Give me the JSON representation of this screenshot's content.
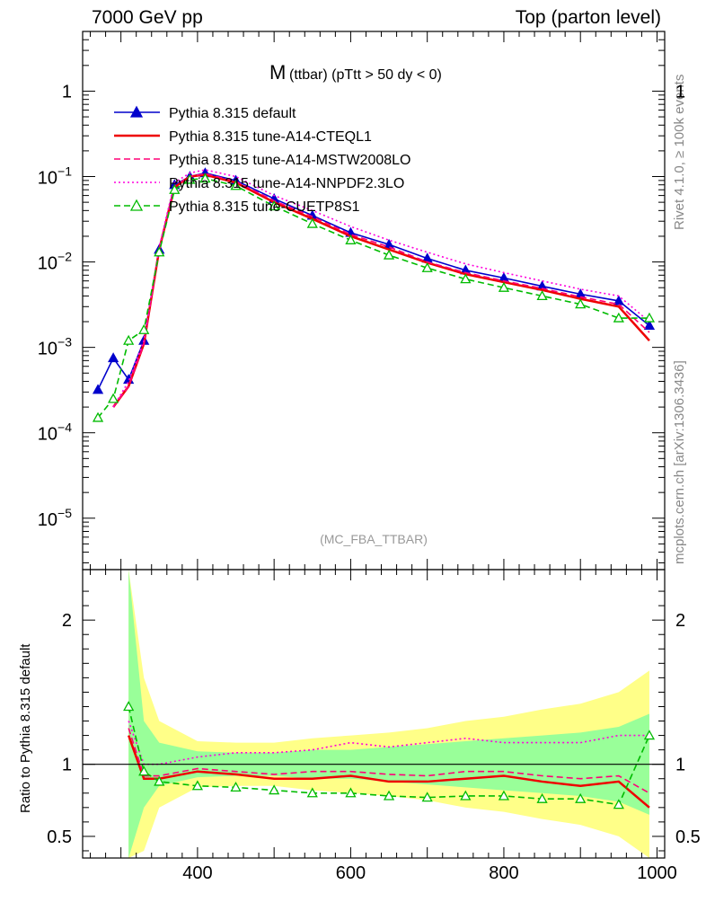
{
  "header": {
    "left": "7000 GeV pp",
    "right": "Top (parton level)"
  },
  "side_labels": {
    "rivet": "Rivet 4.1.0, ≥ 100k events",
    "mcplots": "mcplots.cern.ch [arXiv:1306.3436]"
  },
  "chart_data": [
    {
      "type": "line",
      "panel": "main",
      "title": "M (ttbar) (pTtt > 50 dy < 0)",
      "title_main": "M",
      "title_rest": "(ttbar) (pTtt > 50 dy < 0)",
      "watermark": "(MC_FBA_TTBAR)",
      "xlim": [
        250,
        1010
      ],
      "ylim": [
        2.5e-06,
        5
      ],
      "yscale": "log",
      "ytick_labels": [
        "10^-5",
        "10^-4",
        "10^-3",
        "10^-2",
        "10^-1",
        "1"
      ],
      "x": [
        270,
        290,
        310,
        330,
        350,
        370,
        390,
        410,
        450,
        500,
        550,
        600,
        650,
        700,
        750,
        800,
        850,
        900,
        950,
        990
      ],
      "series": [
        {
          "name": "Pythia 8.315 default",
          "color": "#0000cc",
          "style": "solid",
          "marker": "triangle-filled",
          "values": [
            0.00032,
            0.00075,
            0.00042,
            0.0012,
            0.014,
            0.08,
            0.1,
            0.11,
            0.09,
            0.055,
            0.035,
            0.022,
            0.016,
            0.011,
            0.008,
            0.0065,
            0.0052,
            0.0042,
            0.0035,
            0.0018
          ]
        },
        {
          "name": "Pythia 8.315 tune-A14-CTEQL1",
          "color": "#ee0000",
          "style": "solid",
          "marker": "none",
          "values": [
            null,
            0.0002,
            0.00035,
            0.0011,
            0.014,
            0.075,
            0.1,
            0.105,
            0.085,
            0.05,
            0.032,
            0.02,
            0.014,
            0.0098,
            0.0072,
            0.0058,
            0.0047,
            0.0037,
            0.003,
            0.0012
          ]
        },
        {
          "name": "Pythia 8.315 tune-A14-MSTW2008LO",
          "color": "#ff0077",
          "style": "dashed",
          "marker": "none",
          "values": [
            null,
            0.0002,
            0.00035,
            0.0011,
            0.014,
            0.078,
            0.1,
            0.108,
            0.088,
            0.052,
            0.034,
            0.021,
            0.015,
            0.01,
            0.0075,
            0.006,
            0.0049,
            0.0039,
            0.0032,
            0.0015
          ]
        },
        {
          "name": "Pythia 8.315 tune-A14-NNPDF2.3LO",
          "color": "#ff00dd",
          "style": "dotted",
          "marker": "none",
          "values": [
            null,
            0.0002,
            0.0004,
            0.0012,
            0.015,
            0.085,
            0.11,
            0.12,
            0.1,
            0.06,
            0.04,
            0.026,
            0.018,
            0.013,
            0.0095,
            0.0075,
            0.006,
            0.0048,
            0.004,
            0.002
          ]
        },
        {
          "name": "Pythia 8.315 tune-CUETP8S1",
          "color": "#00bb00",
          "style": "dashed",
          "marker": "triangle-open",
          "values": [
            0.00015,
            0.00025,
            0.0012,
            0.0016,
            0.013,
            0.07,
            0.092,
            0.095,
            0.078,
            0.045,
            0.028,
            0.018,
            0.012,
            0.0085,
            0.0063,
            0.005,
            0.004,
            0.0032,
            0.0022,
            0.0022
          ]
        }
      ]
    },
    {
      "type": "line",
      "panel": "ratio",
      "ylabel": "Ratio to Pythia 8.315 default",
      "xlim": [
        250,
        1010
      ],
      "ylim": [
        0.35,
        2.35
      ],
      "ytick_labels": [
        "0.5",
        "1",
        "2"
      ],
      "xtick_labels": [
        "400",
        "600",
        "800",
        "1000"
      ],
      "x": [
        310,
        330,
        350,
        400,
        450,
        500,
        550,
        600,
        650,
        700,
        750,
        800,
        850,
        900,
        950,
        990
      ],
      "band_inner": [
        1.8,
        0.3,
        0.15,
        0.09,
        0.08,
        0.08,
        0.1,
        0.1,
        0.12,
        0.14,
        0.16,
        0.18,
        0.2,
        0.22,
        0.26,
        0.35
      ],
      "band_outer": [
        2.6,
        0.6,
        0.3,
        0.16,
        0.15,
        0.15,
        0.18,
        0.2,
        0.22,
        0.25,
        0.3,
        0.33,
        0.38,
        0.42,
        0.5,
        0.65
      ],
      "series": [
        {
          "name": "Pythia 8.315 tune-A14-CTEQL1",
          "color": "#ee0000",
          "style": "solid",
          "values": [
            1.2,
            0.9,
            0.9,
            0.95,
            0.93,
            0.9,
            0.9,
            0.92,
            0.88,
            0.88,
            0.9,
            0.92,
            0.88,
            0.85,
            0.88,
            0.7
          ]
        },
        {
          "name": "Pythia 8.315 tune-A14-MSTW2008LO",
          "color": "#ff0077",
          "style": "dashed",
          "values": [
            1.25,
            0.92,
            0.92,
            0.97,
            0.95,
            0.93,
            0.95,
            0.95,
            0.93,
            0.92,
            0.95,
            0.95,
            0.92,
            0.9,
            0.92,
            0.8
          ]
        },
        {
          "name": "Pythia 8.315 tune-A14-NNPDF2.3LO",
          "color": "#ff00dd",
          "style": "dotted",
          "values": [
            1.3,
            1.0,
            1.0,
            1.05,
            1.08,
            1.08,
            1.1,
            1.15,
            1.12,
            1.15,
            1.18,
            1.15,
            1.15,
            1.15,
            1.2,
            1.2
          ]
        },
        {
          "name": "Pythia 8.315 tune-CUETP8S1",
          "color": "#00bb00",
          "style": "dashed",
          "values": [
            1.4,
            0.95,
            0.88,
            0.85,
            0.84,
            0.82,
            0.8,
            0.8,
            0.78,
            0.77,
            0.78,
            0.78,
            0.76,
            0.76,
            0.72,
            1.2
          ]
        }
      ]
    }
  ]
}
